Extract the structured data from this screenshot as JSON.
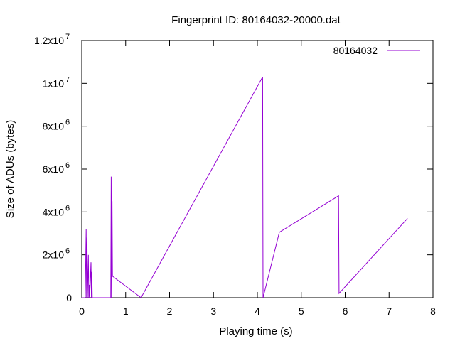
{
  "chart_data": {
    "type": "line",
    "title": "Fingerprint ID: 80164032-20000.dat",
    "xlabel": "Playing time (s)",
    "ylabel": "Size of ADUs (bytes)",
    "xlim": [
      0,
      8
    ],
    "ylim": [
      0,
      12000000
    ],
    "x_ticks": [
      {
        "value": 0,
        "label": "0"
      },
      {
        "value": 1,
        "label": "1"
      },
      {
        "value": 2,
        "label": "2"
      },
      {
        "value": 3,
        "label": "3"
      },
      {
        "value": 4,
        "label": "4"
      },
      {
        "value": 5,
        "label": "5"
      },
      {
        "value": 6,
        "label": "6"
      },
      {
        "value": 7,
        "label": "7"
      },
      {
        "value": 8,
        "label": "8"
      }
    ],
    "y_ticks": [
      {
        "value": 0,
        "mantissa": "0",
        "exponent": ""
      },
      {
        "value": 2000000,
        "mantissa": "2x10",
        "exponent": "6"
      },
      {
        "value": 4000000,
        "mantissa": "4x10",
        "exponent": "6"
      },
      {
        "value": 6000000,
        "mantissa": "6x10",
        "exponent": "6"
      },
      {
        "value": 8000000,
        "mantissa": "8x10",
        "exponent": "6"
      },
      {
        "value": 10000000,
        "mantissa": "1x10",
        "exponent": "7"
      },
      {
        "value": 12000000,
        "mantissa": "1.2x10",
        "exponent": "7"
      }
    ],
    "grid": false,
    "legend_position": "top-right",
    "series": [
      {
        "name": "80164032",
        "color": "#9400d3",
        "points": [
          [
            0.0,
            0
          ],
          [
            0.08,
            0
          ],
          [
            0.1,
            3200000
          ],
          [
            0.11,
            0
          ],
          [
            0.12,
            2800000
          ],
          [
            0.13,
            0
          ],
          [
            0.15,
            2000000
          ],
          [
            0.16,
            0
          ],
          [
            0.17,
            600000
          ],
          [
            0.18,
            0
          ],
          [
            0.21,
            1650000
          ],
          [
            0.22,
            0
          ],
          [
            0.23,
            1200000
          ],
          [
            0.24,
            0
          ],
          [
            0.26,
            0
          ],
          [
            0.66,
            0
          ],
          [
            0.67,
            5650000
          ],
          [
            0.68,
            0
          ],
          [
            0.69,
            4500000
          ],
          [
            0.7,
            1000000
          ],
          [
            1.35,
            0
          ],
          [
            4.12,
            10300000
          ],
          [
            4.13,
            0
          ],
          [
            4.5,
            3050000
          ],
          [
            5.85,
            4750000
          ],
          [
            5.86,
            200000
          ],
          [
            7.42,
            3700000
          ]
        ]
      }
    ]
  }
}
